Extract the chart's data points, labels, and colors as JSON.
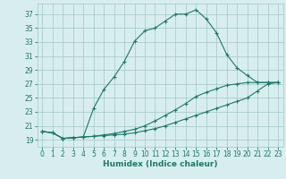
{
  "xlabel": "Humidex (Indice chaleur)",
  "bg_color": "#d8eeee",
  "grid_color": "#aacccc",
  "line_color": "#1a7a6a",
  "xlim": [
    -0.5,
    23.5
  ],
  "ylim": [
    18.0,
    38.5
  ],
  "yticks": [
    19,
    21,
    23,
    25,
    27,
    29,
    31,
    33,
    35,
    37
  ],
  "xticks": [
    0,
    1,
    2,
    3,
    4,
    5,
    6,
    7,
    8,
    9,
    10,
    11,
    12,
    13,
    14,
    15,
    16,
    17,
    18,
    19,
    20,
    21,
    22,
    23
  ],
  "curve1_x": [
    0,
    1,
    2,
    3,
    4,
    5,
    6,
    7,
    8,
    9,
    10,
    11,
    12,
    13,
    14,
    15,
    16,
    17,
    18,
    19,
    20,
    21,
    22,
    23
  ],
  "curve1_y": [
    20.2,
    20.0,
    19.2,
    19.3,
    19.4,
    23.5,
    26.2,
    28.0,
    30.2,
    33.1,
    34.6,
    35.0,
    36.0,
    37.0,
    37.0,
    37.6,
    36.3,
    34.3,
    31.2,
    29.3,
    28.2,
    27.2,
    27.2,
    27.2
  ],
  "curve2_x": [
    0,
    1,
    2,
    3,
    4,
    5,
    6,
    7,
    8,
    9,
    10,
    11,
    12,
    13,
    14,
    15,
    16,
    17,
    18,
    19,
    20,
    21,
    22,
    23
  ],
  "curve2_y": [
    20.2,
    20.0,
    19.2,
    19.3,
    19.4,
    19.5,
    19.7,
    19.9,
    20.2,
    20.5,
    21.0,
    21.7,
    22.5,
    23.3,
    24.2,
    25.2,
    25.8,
    26.3,
    26.8,
    27.0,
    27.2,
    27.2,
    27.2,
    27.2
  ],
  "curve3_x": [
    0,
    1,
    2,
    3,
    4,
    5,
    6,
    7,
    8,
    9,
    10,
    11,
    12,
    13,
    14,
    15,
    16,
    17,
    18,
    19,
    20,
    21,
    22,
    23
  ],
  "curve3_y": [
    20.2,
    20.0,
    19.2,
    19.3,
    19.4,
    19.5,
    19.6,
    19.7,
    19.8,
    20.0,
    20.3,
    20.6,
    21.0,
    21.5,
    22.0,
    22.5,
    23.0,
    23.5,
    24.0,
    24.5,
    25.0,
    26.0,
    27.0,
    27.2
  ],
  "tick_fontsize": 5.5,
  "xlabel_fontsize": 6.5
}
